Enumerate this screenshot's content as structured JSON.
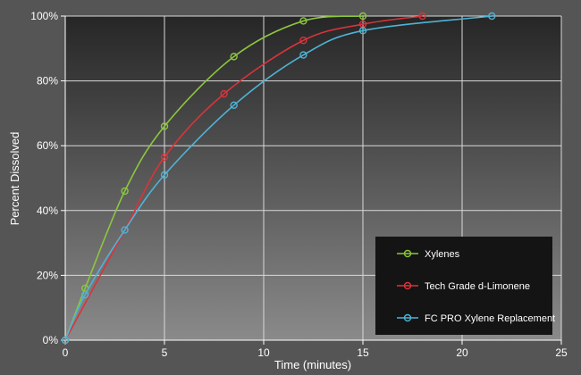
{
  "chart_data": {
    "type": "line",
    "xlabel": "Time (minutes)",
    "ylabel": "Percent Dissolved",
    "xlim": [
      0,
      25
    ],
    "ylim": [
      0,
      100
    ],
    "x_ticks": [
      "0",
      "5",
      "10",
      "15",
      "20",
      "25"
    ],
    "y_ticks": [
      "0%",
      "20%",
      "40%",
      "60%",
      "80%",
      "100%"
    ],
    "grid": true,
    "legend_position": "bottom-right",
    "series": [
      {
        "name": "Xylenes",
        "color": "#8cc63f",
        "points": [
          [
            0,
            0
          ],
          [
            1,
            16
          ],
          [
            3,
            46
          ],
          [
            5,
            66
          ],
          [
            8.5,
            87.5
          ],
          [
            12,
            98.5
          ],
          [
            15,
            100
          ]
        ]
      },
      {
        "name": "Tech Grade d-Limonene",
        "color": "#d9343a",
        "points": [
          [
            0,
            0
          ],
          [
            3,
            34
          ],
          [
            5,
            56.5
          ],
          [
            8,
            76
          ],
          [
            12,
            92.5
          ],
          [
            15,
            97.5
          ],
          [
            18,
            100
          ]
        ]
      },
      {
        "name": "FC PRO Xylene Replacement",
        "color": "#4fb3d6",
        "points": [
          [
            0,
            0
          ],
          [
            1,
            14
          ],
          [
            3,
            34
          ],
          [
            5,
            51
          ],
          [
            8.5,
            72.5
          ],
          [
            12,
            88
          ],
          [
            15,
            95.5
          ],
          [
            21.5,
            100
          ]
        ]
      }
    ]
  }
}
